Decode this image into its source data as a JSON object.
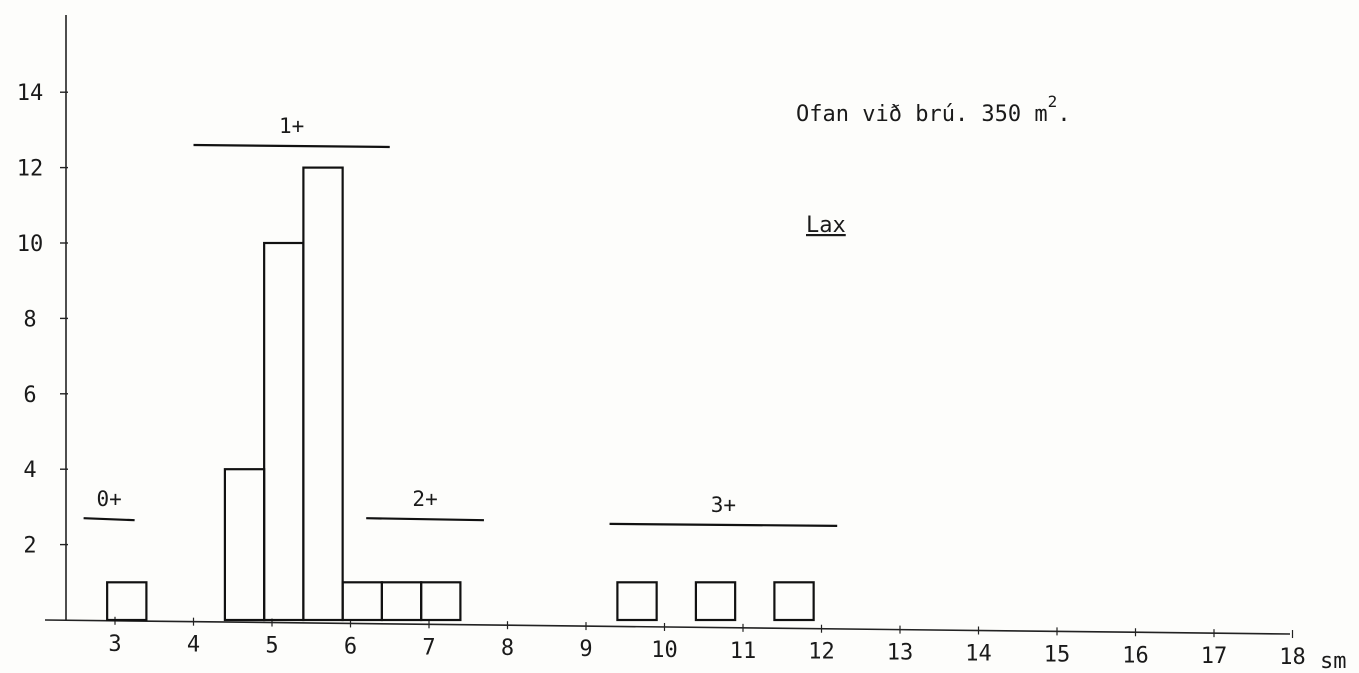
{
  "chart_data": {
    "type": "bar",
    "title": "Ofan við brú. 350 m",
    "title_superscript": "2",
    "title_suffix": ".",
    "species_label": "Lax",
    "xunit": "sm",
    "xlim": [
      2.5,
      18.5
    ],
    "ylim": [
      0,
      15
    ],
    "y_ticks": [
      2,
      4,
      6,
      8,
      10,
      12,
      14
    ],
    "x_ticks": [
      3,
      4,
      5,
      6,
      7,
      8,
      9,
      10,
      11,
      12,
      13,
      14,
      15,
      16,
      17,
      18
    ],
    "bars": [
      {
        "x0": 2.9,
        "x1": 3.4,
        "value": 1
      },
      {
        "x0": 4.4,
        "x1": 4.9,
        "value": 4
      },
      {
        "x0": 4.9,
        "x1": 5.4,
        "value": 10
      },
      {
        "x0": 5.4,
        "x1": 5.9,
        "value": 12
      },
      {
        "x0": 5.9,
        "x1": 6.4,
        "value": 1
      },
      {
        "x0": 6.4,
        "x1": 6.9,
        "value": 1
      },
      {
        "x0": 6.9,
        "x1": 7.4,
        "value": 1
      },
      {
        "x0": 9.4,
        "x1": 9.9,
        "value": 1
      },
      {
        "x0": 10.4,
        "x1": 10.9,
        "value": 1
      },
      {
        "x0": 11.4,
        "x1": 11.9,
        "value": 1
      }
    ],
    "age_groups": [
      {
        "label": "0+",
        "x0": 2.6,
        "x1": 3.25,
        "y": 2.7
      },
      {
        "label": "1+",
        "x0": 4.0,
        "x1": 6.5,
        "y": 12.6
      },
      {
        "label": "2+",
        "x0": 6.2,
        "x1": 7.7,
        "y": 2.7
      },
      {
        "label": "3+",
        "x0": 9.3,
        "x1": 12.2,
        "y": 2.55
      }
    ]
  }
}
